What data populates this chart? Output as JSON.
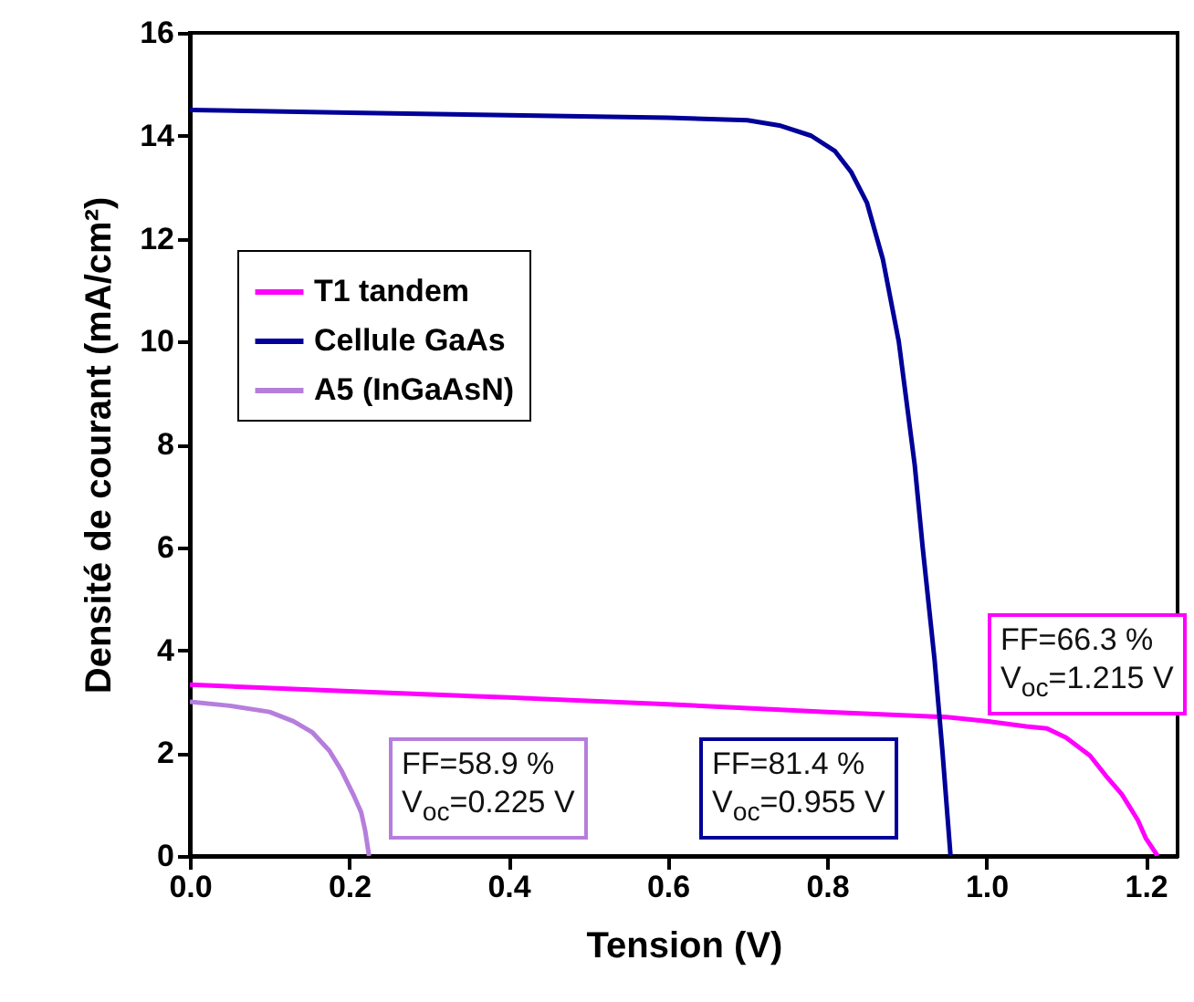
{
  "chart_data": {
    "type": "line",
    "xlabel": "Tension (V)",
    "ylabel": "Densité de courant (mA/cm²)",
    "xlim": [
      0,
      1.24
    ],
    "ylim": [
      0,
      16
    ],
    "xticks": [
      {
        "value": 0,
        "label": "0.0"
      },
      {
        "value": 0.2,
        "label": "0.2"
      },
      {
        "value": 0.4,
        "label": "0.4"
      },
      {
        "value": 0.6,
        "label": "0.6"
      },
      {
        "value": 0.8,
        "label": "0.8"
      },
      {
        "value": 1,
        "label": "1.0"
      },
      {
        "value": 1.2,
        "label": "1.2"
      }
    ],
    "yticks": [
      0,
      2,
      4,
      6,
      8,
      10,
      12,
      14,
      16
    ],
    "legend": "top left",
    "grid": false,
    "marker": "none",
    "line_style": "solid",
    "series": [
      {
        "name": "T1 tandem",
        "color": "#ff00ff",
        "x": [
          0,
          0.2,
          0.4,
          0.6,
          0.8,
          0.95,
          1.0,
          1.05,
          1.076,
          1.1,
          1.13,
          1.15,
          1.17,
          1.19,
          1.2,
          1.215
        ],
        "values": [
          3.33,
          3.2,
          3.08,
          2.95,
          2.8,
          2.7,
          2.62,
          2.52,
          2.48,
          2.3,
          1.95,
          1.56,
          1.2,
          0.7,
          0.35,
          0
        ]
      },
      {
        "name": "Cellule GaAs",
        "color": "#000099",
        "x": [
          0,
          0.2,
          0.4,
          0.6,
          0.7,
          0.74,
          0.78,
          0.81,
          0.83,
          0.85,
          0.87,
          0.89,
          0.91,
          0.92,
          0.935,
          0.945,
          0.955
        ],
        "values": [
          14.5,
          14.45,
          14.4,
          14.35,
          14.3,
          14.2,
          14.0,
          13.7,
          13.3,
          12.7,
          11.6,
          10.0,
          7.6,
          6.0,
          3.8,
          2.0,
          0
        ]
      },
      {
        "name": "A5 (InGaAsN)",
        "color": "#b57edc",
        "x": [
          0,
          0.05,
          0.1,
          0.13,
          0.154,
          0.175,
          0.19,
          0.205,
          0.215,
          0.22,
          0.225
        ],
        "values": [
          3.0,
          2.92,
          2.8,
          2.62,
          2.4,
          2.05,
          1.67,
          1.2,
          0.85,
          0.5,
          0
        ]
      }
    ],
    "annotations": [
      "FF=66.3 %\nV$_{oc}$=1.215 V",
      "FF=81.4 %\nV$_{oc}$=0.955 V",
      "FF=58.9 %\nV$_{oc}$=0.225 V"
    ]
  }
}
